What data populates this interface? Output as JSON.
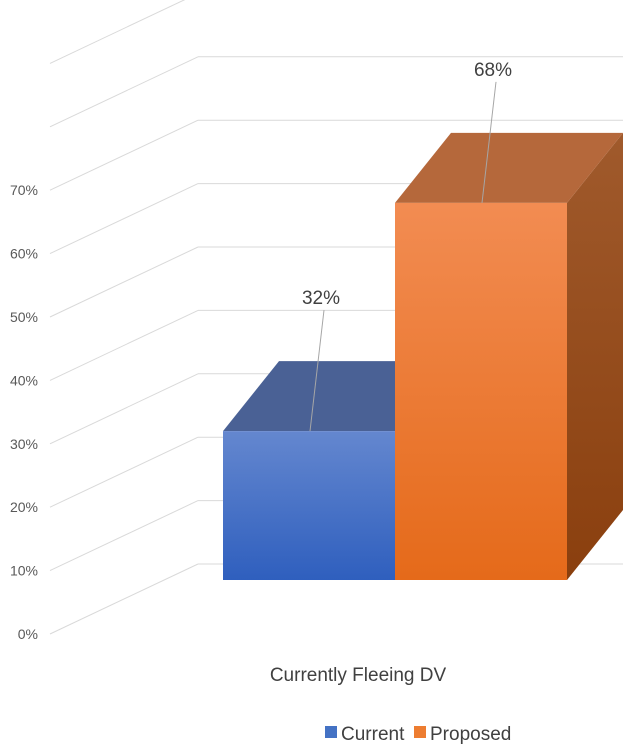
{
  "chart_data": {
    "type": "bar",
    "style": "3d-column",
    "categories": [
      "Currently Fleeing DV"
    ],
    "series": [
      {
        "name": "Current",
        "values": [
          32
        ],
        "label": "32%",
        "color": "#4472C4"
      },
      {
        "name": "Proposed",
        "values": [
          68
        ],
        "label": "68%",
        "color": "#ED7D31"
      }
    ],
    "yticks": [
      "0%",
      "10%",
      "20%",
      "30%",
      "40%",
      "50%",
      "60%",
      "70%"
    ],
    "ylim": [
      0,
      80
    ],
    "grid": true,
    "legend": "bottom-right"
  }
}
